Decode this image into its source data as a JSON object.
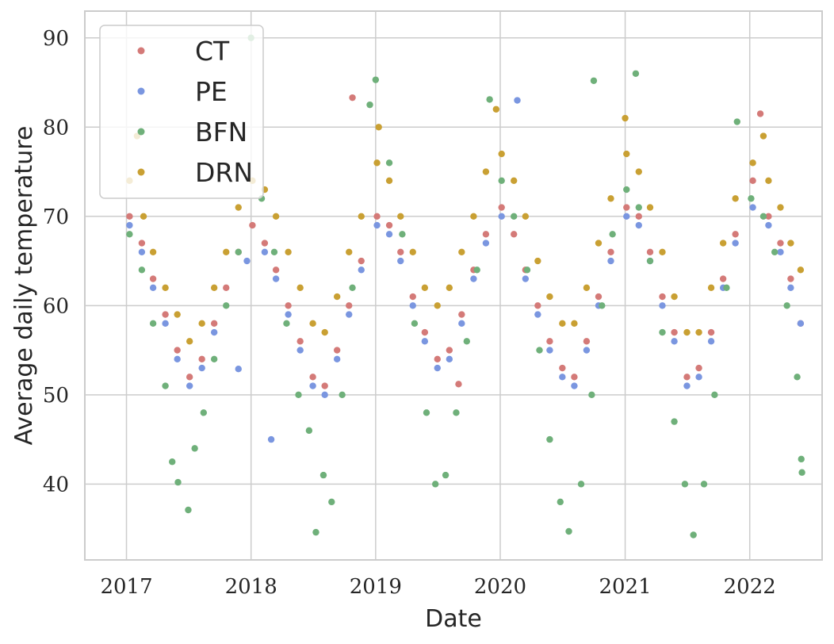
{
  "chart_data": {
    "type": "scatter",
    "title": "",
    "xlabel": "Date",
    "ylabel": "Average daily temperature",
    "xlim": [
      "2016-09-01",
      "2022-08-01"
    ],
    "ylim": [
      31.5,
      93.0
    ],
    "x_ticks": [
      "2017",
      "2018",
      "2019",
      "2020",
      "2021",
      "2022"
    ],
    "y_ticks": [
      40,
      50,
      60,
      70,
      80,
      90
    ],
    "grid": true,
    "legend": "top-left",
    "series": [
      {
        "name": "CT",
        "color": "#d47a78",
        "points": [
          [
            "2017-01-10",
            70
          ],
          [
            "2017-02-15",
            67
          ],
          [
            "2017-03-20",
            63
          ],
          [
            "2017-04-25",
            59
          ],
          [
            "2017-05-30",
            55
          ],
          [
            "2017-07-05",
            52
          ],
          [
            "2017-08-10",
            54
          ],
          [
            "2017-09-15",
            58
          ],
          [
            "2017-10-20",
            62
          ],
          [
            "2017-11-25",
            66
          ],
          [
            "2018-01-05",
            69
          ],
          [
            "2018-02-10",
            67
          ],
          [
            "2018-03-15",
            64
          ],
          [
            "2018-04-20",
            60
          ],
          [
            "2018-05-25",
            56
          ],
          [
            "2018-07-01",
            52
          ],
          [
            "2018-08-05",
            51
          ],
          [
            "2018-09-10",
            55
          ],
          [
            "2018-10-15",
            60
          ],
          [
            "2018-10-25",
            83.3
          ],
          [
            "2018-11-20",
            65
          ],
          [
            "2019-01-05",
            70
          ],
          [
            "2019-02-10",
            69
          ],
          [
            "2019-03-15",
            66
          ],
          [
            "2019-04-20",
            61
          ],
          [
            "2019-05-25",
            57
          ],
          [
            "2019-07-01",
            54
          ],
          [
            "2019-08-05",
            55
          ],
          [
            "2019-09-01",
            51.2
          ],
          [
            "2019-09-10",
            59
          ],
          [
            "2019-10-15",
            64
          ],
          [
            "2019-11-20",
            68
          ],
          [
            "2020-01-05",
            71
          ],
          [
            "2020-02-10",
            68
          ],
          [
            "2020-03-15",
            64
          ],
          [
            "2020-04-20",
            60
          ],
          [
            "2020-05-25",
            56
          ],
          [
            "2020-07-01",
            53
          ],
          [
            "2020-08-05",
            52
          ],
          [
            "2020-09-10",
            56
          ],
          [
            "2020-10-15",
            61
          ],
          [
            "2020-11-20",
            66
          ],
          [
            "2021-01-05",
            71
          ],
          [
            "2021-02-10",
            70
          ],
          [
            "2021-03-15",
            66
          ],
          [
            "2021-04-20",
            61
          ],
          [
            "2021-05-25",
            57
          ],
          [
            "2021-07-01",
            52
          ],
          [
            "2021-08-05",
            53
          ],
          [
            "2021-09-10",
            57
          ],
          [
            "2021-10-15",
            63
          ],
          [
            "2021-11-20",
            68
          ],
          [
            "2022-01-10",
            74
          ],
          [
            "2022-02-01",
            81.5
          ],
          [
            "2022-02-25",
            70
          ],
          [
            "2022-04-01",
            67
          ],
          [
            "2022-05-01",
            63
          ],
          [
            "2022-05-30",
            58
          ]
        ]
      },
      {
        "name": "PE",
        "color": "#7a96e0",
        "points": [
          [
            "2017-01-10",
            69
          ],
          [
            "2017-02-15",
            66
          ],
          [
            "2017-03-20",
            62
          ],
          [
            "2017-04-25",
            58
          ],
          [
            "2017-05-30",
            54
          ],
          [
            "2017-07-05",
            51
          ],
          [
            "2017-08-10",
            53
          ],
          [
            "2017-09-15",
            57
          ],
          [
            "2017-11-25",
            52.9
          ],
          [
            "2017-12-20",
            65
          ],
          [
            "2018-02-10",
            66
          ],
          [
            "2018-03-01",
            45
          ],
          [
            "2018-03-15",
            63
          ],
          [
            "2018-04-20",
            59
          ],
          [
            "2018-05-25",
            55
          ],
          [
            "2018-07-01",
            51
          ],
          [
            "2018-08-05",
            50
          ],
          [
            "2018-09-10",
            54
          ],
          [
            "2018-10-15",
            59
          ],
          [
            "2018-11-20",
            64
          ],
          [
            "2019-01-05",
            69
          ],
          [
            "2019-02-10",
            68
          ],
          [
            "2019-03-15",
            65
          ],
          [
            "2019-04-20",
            60
          ],
          [
            "2019-05-25",
            56
          ],
          [
            "2019-07-01",
            53
          ],
          [
            "2019-08-05",
            54
          ],
          [
            "2019-09-10",
            58
          ],
          [
            "2019-10-15",
            63
          ],
          [
            "2019-11-20",
            67
          ],
          [
            "2020-01-05",
            70
          ],
          [
            "2020-02-20",
            83.0
          ],
          [
            "2020-03-15",
            63
          ],
          [
            "2020-04-20",
            59
          ],
          [
            "2020-05-25",
            55
          ],
          [
            "2020-07-01",
            52
          ],
          [
            "2020-08-05",
            51
          ],
          [
            "2020-09-10",
            55
          ],
          [
            "2020-10-15",
            60
          ],
          [
            "2020-11-20",
            65
          ],
          [
            "2021-01-05",
            70
          ],
          [
            "2021-02-10",
            69
          ],
          [
            "2021-03-15",
            65
          ],
          [
            "2021-04-20",
            60
          ],
          [
            "2021-05-25",
            56
          ],
          [
            "2021-07-01",
            51
          ],
          [
            "2021-08-05",
            52
          ],
          [
            "2021-09-10",
            56
          ],
          [
            "2021-10-15",
            62
          ],
          [
            "2021-11-20",
            67
          ],
          [
            "2022-01-10",
            71
          ],
          [
            "2022-02-25",
            69
          ],
          [
            "2022-04-01",
            66
          ],
          [
            "2022-05-01",
            62
          ],
          [
            "2022-05-30",
            58
          ]
        ]
      },
      {
        "name": "BFN",
        "color": "#6fb07a",
        "points": [
          [
            "2017-01-10",
            68
          ],
          [
            "2017-02-15",
            64
          ],
          [
            "2017-03-20",
            58
          ],
          [
            "2017-04-25",
            51
          ],
          [
            "2017-05-15",
            42.5
          ],
          [
            "2017-06-01",
            40.2
          ],
          [
            "2017-07-01",
            37.1
          ],
          [
            "2017-07-20",
            44
          ],
          [
            "2017-08-15",
            48
          ],
          [
            "2017-09-15",
            54
          ],
          [
            "2017-10-20",
            60
          ],
          [
            "2017-11-25",
            66
          ],
          [
            "2018-01-01",
            90
          ],
          [
            "2018-02-01",
            72
          ],
          [
            "2018-03-10",
            66
          ],
          [
            "2018-04-15",
            58
          ],
          [
            "2018-05-20",
            50
          ],
          [
            "2018-06-20",
            46
          ],
          [
            "2018-07-10",
            34.6
          ],
          [
            "2018-08-01",
            41
          ],
          [
            "2018-08-25",
            38
          ],
          [
            "2018-09-25",
            50
          ],
          [
            "2018-10-25",
            62
          ],
          [
            "2018-12-15",
            82.5
          ],
          [
            "2019-01-01",
            85.3
          ],
          [
            "2019-02-10",
            76
          ],
          [
            "2019-03-20",
            68
          ],
          [
            "2019-04-25",
            58
          ],
          [
            "2019-05-30",
            48
          ],
          [
            "2019-06-25",
            40
          ],
          [
            "2019-07-25",
            41
          ],
          [
            "2019-08-25",
            48
          ],
          [
            "2019-09-25",
            56
          ],
          [
            "2019-10-25",
            64
          ],
          [
            "2019-12-01",
            83.1
          ],
          [
            "2020-01-05",
            74
          ],
          [
            "2020-02-10",
            70
          ],
          [
            "2020-03-20",
            64
          ],
          [
            "2020-04-25",
            55
          ],
          [
            "2020-05-25",
            45
          ],
          [
            "2020-06-25",
            38
          ],
          [
            "2020-07-20",
            34.7
          ],
          [
            "2020-08-25",
            40
          ],
          [
            "2020-09-25",
            50
          ],
          [
            "2020-10-25",
            60
          ],
          [
            "2020-10-01",
            85.2
          ],
          [
            "2020-11-25",
            68
          ],
          [
            "2021-01-05",
            73
          ],
          [
            "2021-02-01",
            86
          ],
          [
            "2021-02-10",
            71
          ],
          [
            "2021-03-15",
            65
          ],
          [
            "2021-04-20",
            57
          ],
          [
            "2021-05-25",
            47
          ],
          [
            "2021-06-25",
            40
          ],
          [
            "2021-07-20",
            34.3
          ],
          [
            "2021-08-20",
            40
          ],
          [
            "2021-09-20",
            50
          ],
          [
            "2021-10-25",
            62
          ],
          [
            "2021-11-25",
            80.6
          ],
          [
            "2022-01-05",
            72
          ],
          [
            "2022-02-10",
            70
          ],
          [
            "2022-03-15",
            66
          ],
          [
            "2022-04-20",
            60
          ],
          [
            "2022-05-20",
            52
          ],
          [
            "2022-06-01",
            42.8
          ],
          [
            "2022-06-03",
            41.3
          ]
        ]
      },
      {
        "name": "DRN",
        "color": "#c9a033",
        "points": [
          [
            "2017-01-10",
            74
          ],
          [
            "2017-02-01",
            79
          ],
          [
            "2017-02-20",
            70
          ],
          [
            "2017-03-20",
            66
          ],
          [
            "2017-04-25",
            62
          ],
          [
            "2017-05-30",
            59
          ],
          [
            "2017-07-05",
            56
          ],
          [
            "2017-08-10",
            58
          ],
          [
            "2017-09-15",
            62
          ],
          [
            "2017-10-20",
            66
          ],
          [
            "2017-11-25",
            71
          ],
          [
            "2018-01-05",
            74
          ],
          [
            "2018-02-10",
            73
          ],
          [
            "2018-03-15",
            70
          ],
          [
            "2018-04-20",
            66
          ],
          [
            "2018-05-25",
            62
          ],
          [
            "2018-07-01",
            58
          ],
          [
            "2018-08-05",
            57
          ],
          [
            "2018-09-10",
            61
          ],
          [
            "2018-10-15",
            66
          ],
          [
            "2018-11-20",
            70
          ],
          [
            "2019-01-05",
            76
          ],
          [
            "2019-01-10",
            80
          ],
          [
            "2019-02-10",
            74
          ],
          [
            "2019-03-15",
            70
          ],
          [
            "2019-04-20",
            66
          ],
          [
            "2019-05-25",
            62
          ],
          [
            "2019-07-01",
            60
          ],
          [
            "2019-08-05",
            62
          ],
          [
            "2019-09-10",
            66
          ],
          [
            "2019-10-15",
            70
          ],
          [
            "2019-11-20",
            75
          ],
          [
            "2019-12-20",
            82
          ],
          [
            "2020-01-05",
            77
          ],
          [
            "2020-02-10",
            74
          ],
          [
            "2020-03-15",
            70
          ],
          [
            "2020-04-20",
            65
          ],
          [
            "2020-05-25",
            61
          ],
          [
            "2020-07-01",
            58
          ],
          [
            "2020-08-05",
            58
          ],
          [
            "2020-09-10",
            62
          ],
          [
            "2020-10-15",
            67
          ],
          [
            "2020-11-20",
            72
          ],
          [
            "2021-01-05",
            77
          ],
          [
            "2021-01-01",
            81
          ],
          [
            "2021-02-10",
            75
          ],
          [
            "2021-03-15",
            71
          ],
          [
            "2021-04-20",
            66
          ],
          [
            "2021-05-25",
            61
          ],
          [
            "2021-07-01",
            57
          ],
          [
            "2021-08-05",
            57
          ],
          [
            "2021-09-10",
            62
          ],
          [
            "2021-10-15",
            67
          ],
          [
            "2021-11-20",
            72
          ],
          [
            "2022-01-10",
            76
          ],
          [
            "2022-02-10",
            79
          ],
          [
            "2022-02-25",
            74
          ],
          [
            "2022-04-01",
            71
          ],
          [
            "2022-05-01",
            67
          ],
          [
            "2022-05-30",
            64
          ]
        ]
      }
    ]
  }
}
